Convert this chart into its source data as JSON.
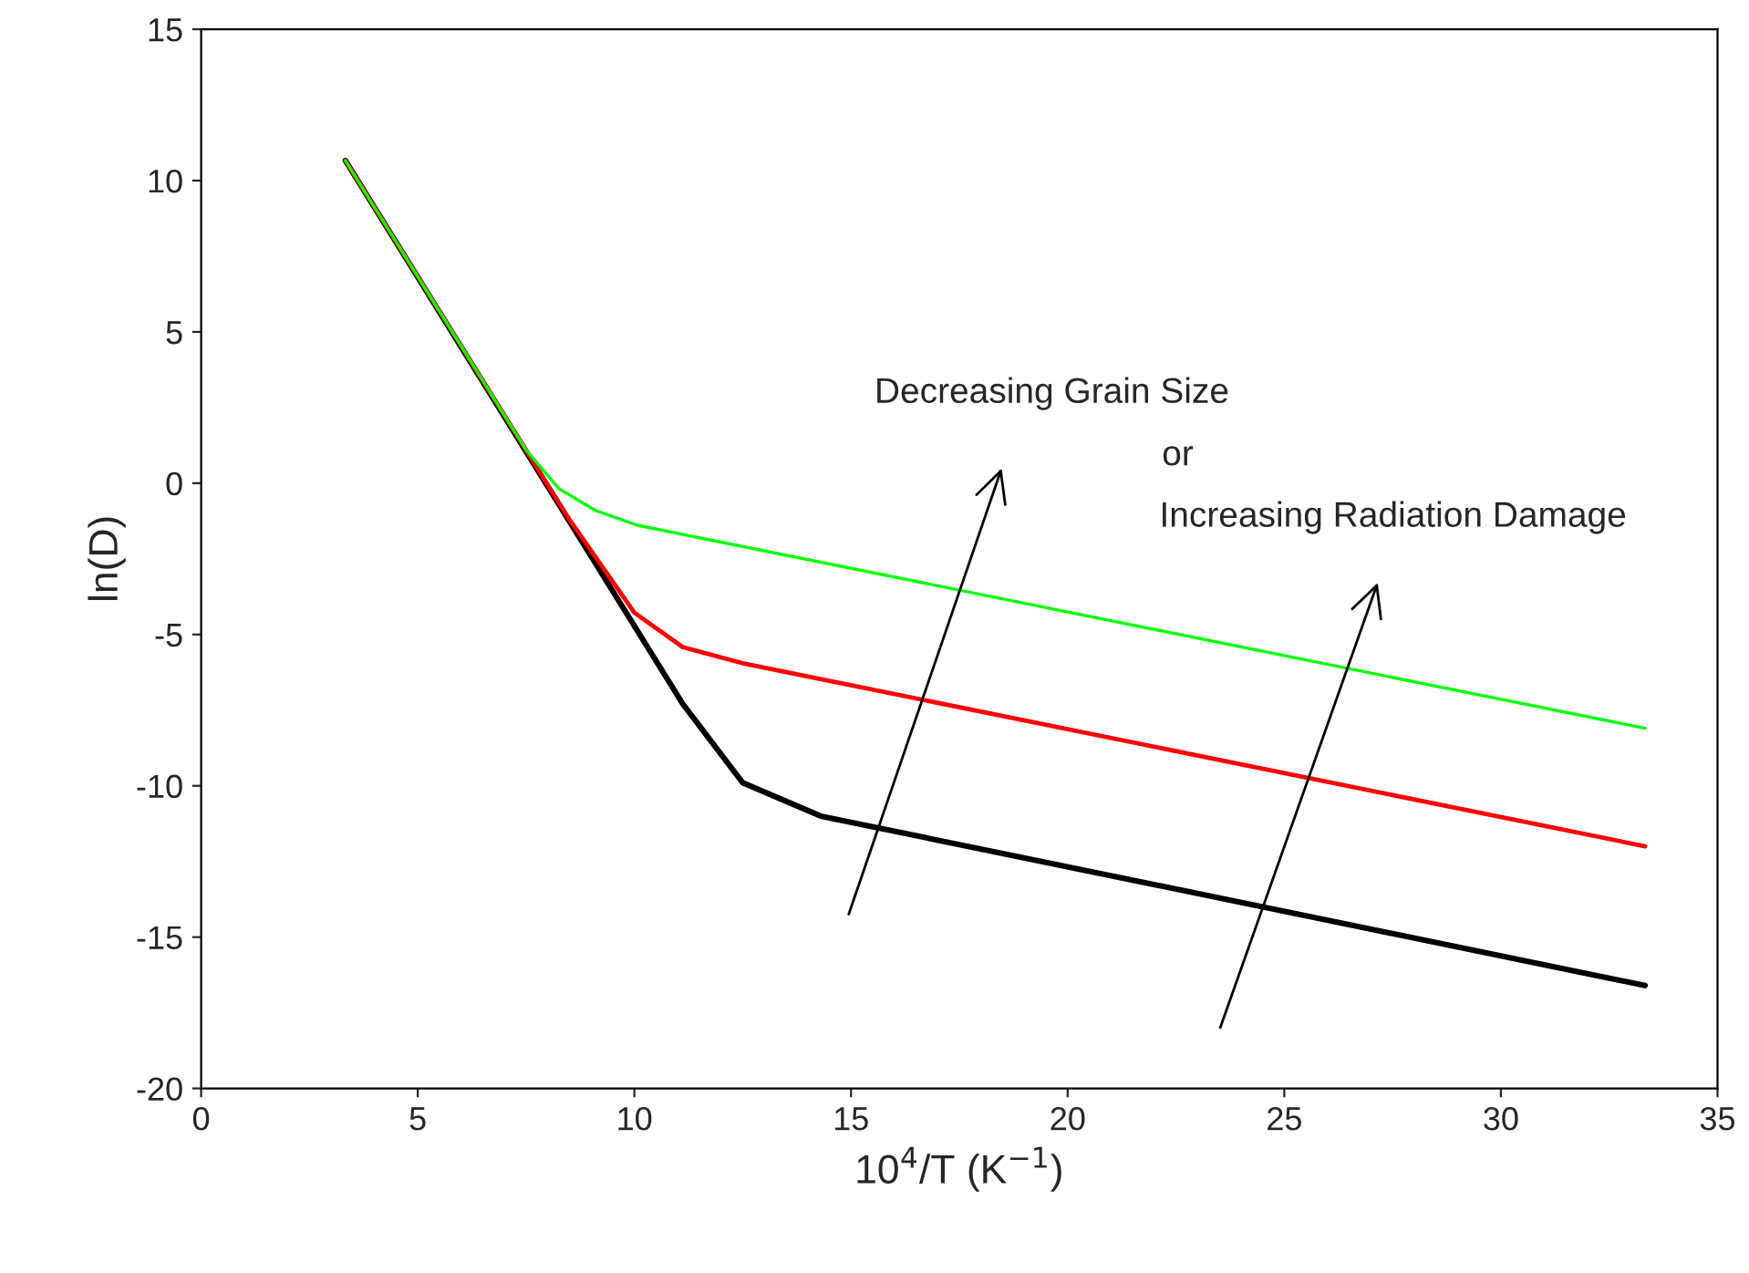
{
  "chart_data": {
    "type": "line",
    "xlabel": "10$^{4}$/T (K$^{−1}$)",
    "ylabel": "ln(D)",
    "xlim": [
      0,
      35
    ],
    "xticks": [
      0,
      5,
      10,
      15,
      20,
      25,
      30,
      35
    ],
    "ylim": [
      -20,
      15
    ],
    "yticks": [
      -20,
      -15,
      -10,
      -5,
      0,
      5,
      10,
      15
    ],
    "grid": false,
    "legend": false,
    "series": [
      {
        "color": "#000000",
        "x": [
          3.33,
          11.12,
          12.5,
          14.3,
          33.33
        ],
        "values": [
          10.66,
          -7.3,
          -9.9,
          -11.0,
          -16.6
        ]
      },
      {
        "color": "#ff0000",
        "x": [
          3.33,
          8.5,
          10.0,
          11.12,
          12.5,
          33.33
        ],
        "values": [
          10.66,
          -1.2,
          -4.28,
          -5.42,
          -5.95,
          -12.0
        ]
      },
      {
        "color": "#00ff00",
        "x": [
          3.33,
          7.5,
          8.26,
          9.1,
          10.07,
          33.33
        ],
        "values": [
          10.66,
          1.1,
          -0.18,
          -0.9,
          -1.39,
          -8.1
        ]
      }
    ],
    "annotations": [
      "Decreasing Grain Size",
      "or",
      "Increasing Radiation Damage"
    ]
  }
}
